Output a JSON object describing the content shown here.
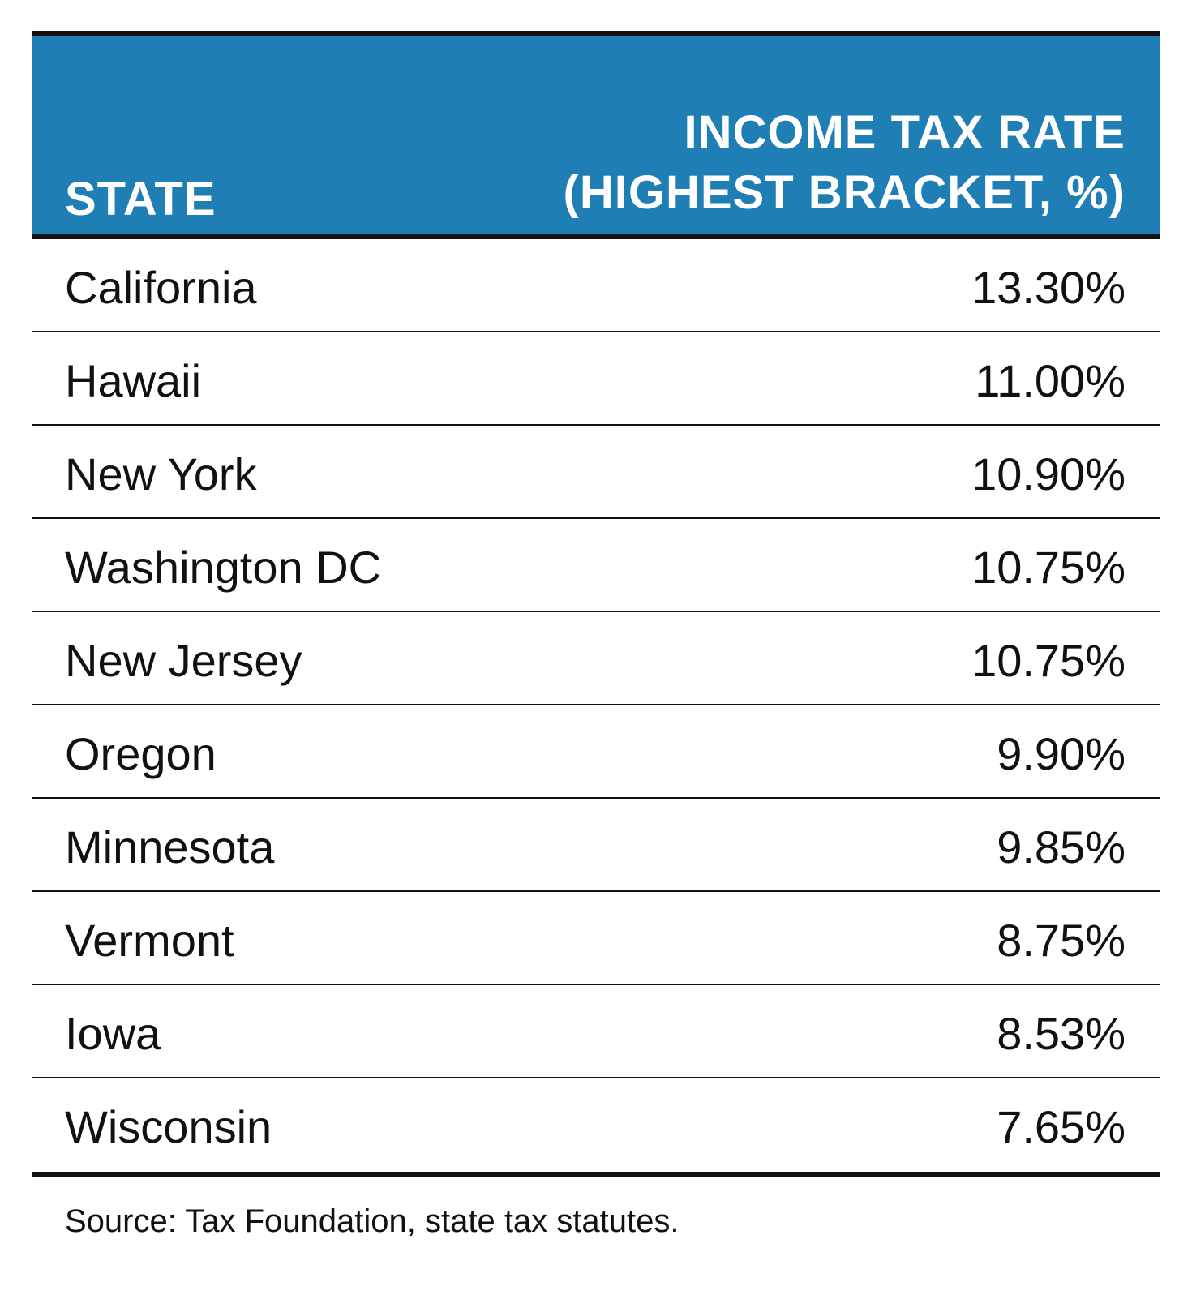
{
  "table": {
    "header": {
      "state": "STATE",
      "rate_line1": "INCOME TAX RATE",
      "rate_line2": "(HIGHEST BRACKET, %)"
    },
    "rows": [
      {
        "state": "California",
        "rate": "13.30%"
      },
      {
        "state": "Hawaii",
        "rate": "11.00%"
      },
      {
        "state": "New York",
        "rate": "10.90%"
      },
      {
        "state": "Washington DC",
        "rate": "10.75%"
      },
      {
        "state": "New Jersey",
        "rate": "10.75%"
      },
      {
        "state": "Oregon",
        "rate": "9.90%"
      },
      {
        "state": "Minnesota",
        "rate": "9.85%"
      },
      {
        "state": "Vermont",
        "rate": "8.75%"
      },
      {
        "state": "Iowa",
        "rate": "8.53%"
      },
      {
        "state": "Wisconsin",
        "rate": "7.65%"
      }
    ],
    "source": "Source: Tax Foundation, state tax statutes."
  },
  "colors": {
    "header_bg": "#1f7eb3",
    "header_text": "#ffffff",
    "rule": "#111111"
  }
}
